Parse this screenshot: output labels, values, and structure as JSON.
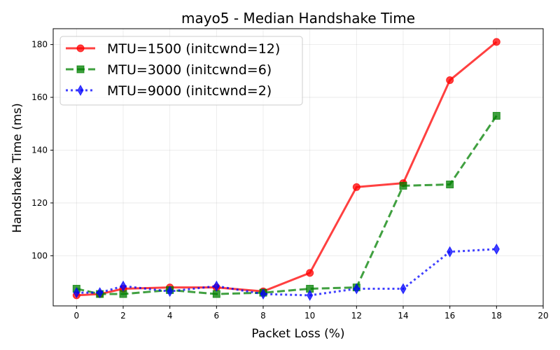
{
  "chart_data": {
    "type": "line",
    "title": "mayo5 - Median Handshake Time",
    "xlabel": "Packet Loss (%)",
    "ylabel": "Handshake Time (ms)",
    "xlim": [
      -1,
      20
    ],
    "ylim": [
      81,
      186
    ],
    "xticks": [
      0,
      2,
      4,
      6,
      8,
      10,
      12,
      14,
      16,
      18,
      20
    ],
    "yticks": [
      100,
      120,
      140,
      160,
      180
    ],
    "grid": true,
    "legend_position": "top-left",
    "series": [
      {
        "name": "MTU=1500 (initcwnd=12)",
        "color": "#ff0000",
        "line_style": "solid",
        "marker": "circle",
        "x": [
          0,
          1,
          2,
          4,
          6,
          8,
          10,
          12,
          14,
          16,
          18
        ],
        "y": [
          85.0,
          85.5,
          87.5,
          88.0,
          88.0,
          86.5,
          93.5,
          126.0,
          127.5,
          166.5,
          181.0
        ]
      },
      {
        "name": "MTU=3000 (initcwnd=6)",
        "color": "#008000",
        "line_style": "dashed",
        "marker": "square",
        "x": [
          0,
          1,
          2,
          4,
          6,
          8,
          10,
          12,
          14,
          16,
          18
        ],
        "y": [
          87.5,
          85.5,
          85.5,
          87.0,
          85.5,
          86.0,
          87.5,
          88.0,
          126.5,
          127.0,
          153.0
        ]
      },
      {
        "name": "MTU=9000 (initcwnd=2)",
        "color": "#0000ff",
        "line_style": "dotted",
        "marker": "thin-diamond",
        "x": [
          0,
          1,
          2,
          4,
          6,
          8,
          10,
          12,
          14,
          16,
          18
        ],
        "y": [
          86.0,
          86.0,
          88.5,
          86.5,
          88.5,
          85.5,
          85.0,
          87.5,
          87.5,
          101.5,
          102.5
        ]
      }
    ]
  }
}
